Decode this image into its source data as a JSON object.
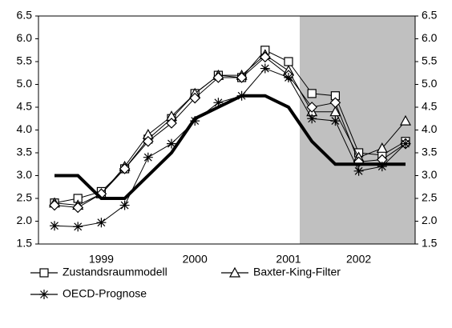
{
  "chart_data": {
    "type": "line",
    "categories": [
      null,
      null,
      "1999",
      null,
      null,
      null,
      "2000",
      null,
      null,
      null,
      "2001",
      null,
      null,
      "2002",
      null,
      null
    ],
    "ylim": [
      1.5,
      6.5
    ],
    "yticks": [
      {
        "value": 1.5,
        "label": "1.5"
      },
      {
        "value": 2,
        "label": "2.0"
      },
      {
        "value": 2.5,
        "label": "2.5"
      },
      {
        "value": 3,
        "label": "3.0"
      },
      {
        "value": 3.5,
        "label": "3.5"
      },
      {
        "value": 4,
        "label": "4.0"
      },
      {
        "value": 4.5,
        "label": "4.5"
      },
      {
        "value": 5,
        "label": "5.0"
      },
      {
        "value": 5.5,
        "label": "5.5"
      },
      {
        "value": 6,
        "label": "6.0"
      },
      {
        "value": 6.5,
        "label": "6.5"
      }
    ],
    "y2lim": [
      1.5,
      6.5
    ],
    "y2ticks": [
      {
        "value": 1.5,
        "label": "1.5"
      },
      {
        "value": 2,
        "label": "2.0"
      },
      {
        "value": 2.5,
        "label": "2.5"
      },
      {
        "value": 3,
        "label": "3.0"
      },
      {
        "value": 3.5,
        "label": "3.5"
      },
      {
        "value": 4,
        "label": "4.0"
      },
      {
        "value": 4.5,
        "label": "4.5"
      },
      {
        "value": 5,
        "label": "5.0"
      },
      {
        "value": 5.5,
        "label": "5.5"
      },
      {
        "value": 6,
        "label": "6.0"
      },
      {
        "value": 6.5,
        "label": "6.5"
      }
    ],
    "series": [
      {
        "name": "Zustandsraummodell",
        "marker": "square",
        "color": "#000000",
        "values": [
          2.4,
          2.5,
          2.65,
          3.15,
          3.8,
          4.25,
          4.8,
          5.2,
          5.15,
          5.75,
          5.5,
          4.8,
          4.75,
          3.5,
          3.45,
          3.75
        ]
      },
      {
        "name": "Baxter-King-Filter",
        "marker": "triangle",
        "color": "#000000",
        "values": [
          2.4,
          2.35,
          2.6,
          3.2,
          3.9,
          4.3,
          4.8,
          5.2,
          5.2,
          5.65,
          5.3,
          4.4,
          4.4,
          3.4,
          3.6,
          4.2
        ]
      },
      {
        "marker": "diamond",
        "color": "#000000",
        "values": [
          2.35,
          2.3,
          2.6,
          3.15,
          3.75,
          4.15,
          4.7,
          5.15,
          5.15,
          5.6,
          5.2,
          4.5,
          4.6,
          3.3,
          3.35,
          3.7
        ]
      },
      {
        "marker": "none",
        "color": "#000000",
        "width": 4,
        "values": [
          3.0,
          3.0,
          2.5,
          2.5,
          3.0,
          3.5,
          4.25,
          4.5,
          4.75,
          4.75,
          4.5,
          3.75,
          3.25,
          3.25,
          3.25,
          3.25
        ]
      },
      {
        "name": "OECD-Prognose",
        "marker": "star",
        "color": "#000000",
        "values": [
          1.9,
          1.88,
          1.97,
          2.35,
          3.4,
          3.7,
          4.2,
          4.6,
          4.75,
          5.35,
          5.15,
          4.25,
          4.2,
          3.1,
          3.2,
          3.7
        ]
      }
    ]
  }
}
